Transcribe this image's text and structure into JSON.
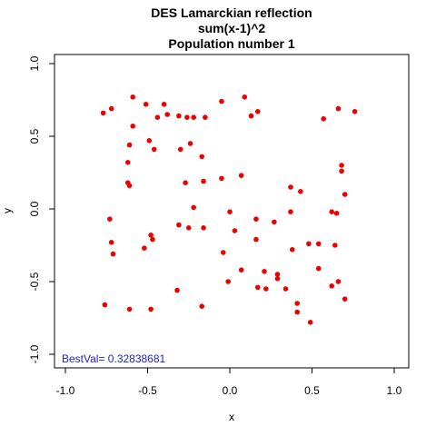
{
  "chart_data": {
    "type": "scatter",
    "title_lines": [
      "DES Lamarckian reflection",
      "sum(x-1)^2",
      "Population number 1"
    ],
    "xlabel": "x",
    "ylabel": "y",
    "xlim": [
      -1.0,
      1.0
    ],
    "ylim": [
      -1.0,
      1.0
    ],
    "xticks": [
      -1.0,
      -0.5,
      0.0,
      0.5,
      1.0
    ],
    "yticks": [
      -1.0,
      -0.5,
      0.0,
      0.5,
      1.0
    ],
    "xtick_labels": [
      "-1.0",
      "-0.5",
      "0.0",
      "0.5",
      "1.0"
    ],
    "ytick_labels": [
      "-1.0",
      "-0.5",
      "0.0",
      "0.5",
      "1.0"
    ],
    "grid": false,
    "point_color": "#ee0000",
    "annotation": {
      "text": "BestVal= 0.32838681",
      "color": "#2222cc"
    },
    "points": [
      [
        -0.59,
        0.77
      ],
      [
        -0.4,
        0.72
      ],
      [
        -0.51,
        0.72
      ],
      [
        -0.05,
        0.74
      ],
      [
        0.09,
        0.77
      ],
      [
        -0.77,
        0.66
      ],
      [
        -0.72,
        0.69
      ],
      [
        -0.44,
        0.63
      ],
      [
        -0.38,
        0.65
      ],
      [
        -0.31,
        0.64
      ],
      [
        -0.26,
        0.63
      ],
      [
        -0.22,
        0.63
      ],
      [
        -0.15,
        0.63
      ],
      [
        0.13,
        0.64
      ],
      [
        0.17,
        0.67
      ],
      [
        0.66,
        0.69
      ],
      [
        0.76,
        0.67
      ],
      [
        0.57,
        0.62
      ],
      [
        -0.59,
        0.57
      ],
      [
        -0.49,
        0.47
      ],
      [
        -0.61,
        0.44
      ],
      [
        -0.46,
        0.41
      ],
      [
        -0.24,
        0.45
      ],
      [
        -0.3,
        0.41
      ],
      [
        -0.17,
        0.36
      ],
      [
        -0.62,
        0.32
      ],
      [
        0.68,
        0.3
      ],
      [
        0.68,
        0.26
      ],
      [
        0.07,
        0.23
      ],
      [
        -0.05,
        0.21
      ],
      [
        -0.16,
        0.19
      ],
      [
        -0.27,
        0.18
      ],
      [
        -0.62,
        0.18
      ],
      [
        -0.61,
        0.16
      ],
      [
        0.37,
        0.15
      ],
      [
        0.43,
        0.12
      ],
      [
        0.7,
        0.1
      ],
      [
        -0.22,
        0.01
      ],
      [
        0.0,
        -0.02
      ],
      [
        0.37,
        -0.02
      ],
      [
        0.62,
        -0.02
      ],
      [
        0.65,
        -0.03
      ],
      [
        -0.73,
        -0.07
      ],
      [
        0.16,
        -0.07
      ],
      [
        0.27,
        -0.09
      ],
      [
        -0.31,
        -0.11
      ],
      [
        -0.25,
        -0.13
      ],
      [
        -0.16,
        -0.13
      ],
      [
        0.03,
        -0.15
      ],
      [
        -0.48,
        -0.18
      ],
      [
        -0.47,
        -0.21
      ],
      [
        0.16,
        -0.21
      ],
      [
        -0.72,
        -0.23
      ],
      [
        0.48,
        -0.24
      ],
      [
        0.54,
        -0.24
      ],
      [
        0.64,
        -0.25
      ],
      [
        -0.52,
        -0.27
      ],
      [
        -0.04,
        -0.3
      ],
      [
        -0.71,
        -0.31
      ],
      [
        0.38,
        -0.28
      ],
      [
        0.07,
        -0.42
      ],
      [
        0.21,
        -0.43
      ],
      [
        0.54,
        -0.41
      ],
      [
        0.29,
        -0.45
      ],
      [
        0.29,
        -0.48
      ],
      [
        -0.01,
        -0.5
      ],
      [
        0.66,
        -0.5
      ],
      [
        0.17,
        -0.54
      ],
      [
        0.22,
        -0.55
      ],
      [
        0.62,
        -0.53
      ],
      [
        0.34,
        -0.55
      ],
      [
        -0.32,
        -0.56
      ],
      [
        0.7,
        -0.62
      ],
      [
        0.41,
        -0.65
      ],
      [
        -0.76,
        -0.66
      ],
      [
        -0.17,
        -0.67
      ],
      [
        -0.61,
        -0.69
      ],
      [
        -0.48,
        -0.69
      ],
      [
        0.41,
        -0.71
      ],
      [
        0.49,
        -0.78
      ]
    ]
  }
}
